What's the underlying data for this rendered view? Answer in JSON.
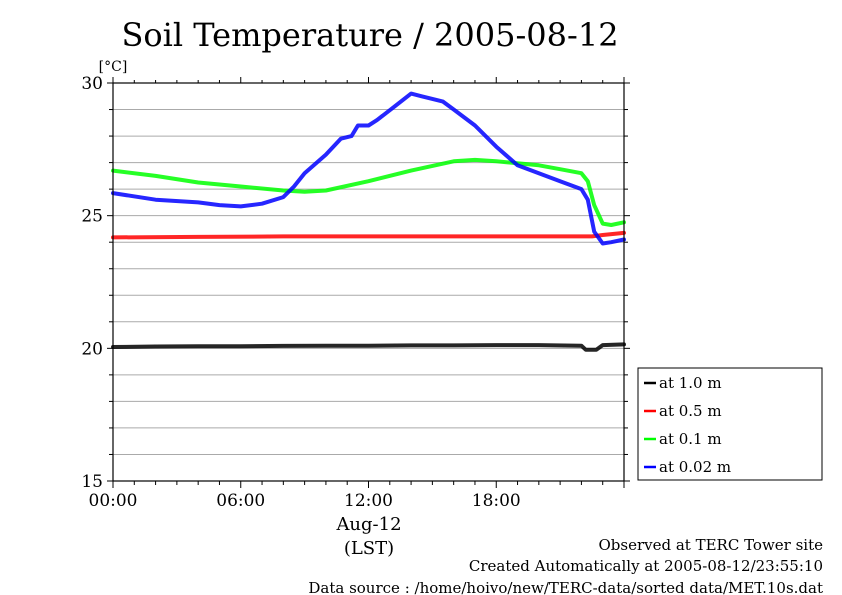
{
  "chart_data": {
    "type": "line",
    "title": "Soil Temperature / 2005-08-12",
    "ylabel": "[°C]",
    "xlabel_date": "Aug-12",
    "xlabel_tz": "(LST)",
    "ylim": [
      15,
      30
    ],
    "yticks": [
      "15",
      "20",
      "25",
      "30"
    ],
    "xlim": [
      0,
      24
    ],
    "xticks": [
      {
        "value": 0,
        "label": "00:00"
      },
      {
        "value": 6,
        "label": "06:00"
      },
      {
        "value": 12,
        "label": "12:00"
      },
      {
        "value": 18,
        "label": "18:00"
      }
    ],
    "grid": true,
    "legend_position": "bottom-right outside",
    "series": [
      {
        "name": "at 1.0 m",
        "color": "#000000",
        "x": [
          0,
          2,
          4,
          6,
          8,
          10,
          12,
          14,
          16,
          18,
          20,
          22.0,
          22.2,
          22.7,
          23.0,
          24
        ],
        "y": [
          20.05,
          20.07,
          20.08,
          20.08,
          20.09,
          20.1,
          20.1,
          20.11,
          20.11,
          20.12,
          20.12,
          20.1,
          19.95,
          19.95,
          20.12,
          20.15
        ]
      },
      {
        "name": "at 0.5 m",
        "color": "#ff0000",
        "x": [
          0,
          4,
          8,
          12,
          16,
          20,
          22.5,
          23,
          24
        ],
        "y": [
          24.18,
          24.2,
          24.22,
          24.22,
          24.22,
          24.22,
          24.22,
          24.27,
          24.35
        ]
      },
      {
        "name": "at 0.1 m",
        "color": "#00ff00",
        "x": [
          0,
          2,
          4,
          6,
          8,
          9,
          10,
          12,
          14,
          16,
          17,
          18,
          20,
          21,
          22,
          22.3,
          22.6,
          23.0,
          23.4,
          24
        ],
        "y": [
          26.7,
          26.5,
          26.25,
          26.1,
          25.95,
          25.9,
          25.95,
          26.3,
          26.7,
          27.05,
          27.1,
          27.05,
          26.9,
          26.75,
          26.6,
          26.3,
          25.4,
          24.7,
          24.65,
          24.75
        ]
      },
      {
        "name": "at 0.02 m",
        "color": "#0000ff",
        "x": [
          0,
          2,
          4,
          5,
          6,
          7,
          8,
          8.5,
          9,
          10,
          10.7,
          11.2,
          11.5,
          12,
          12.4,
          13.2,
          14.0,
          14.5,
          15.0,
          15.5,
          16,
          17,
          18,
          19,
          20,
          21,
          22,
          22.3,
          22.6,
          23.0,
          23.4,
          24
        ],
        "y": [
          25.85,
          25.6,
          25.5,
          25.4,
          25.35,
          25.45,
          25.7,
          26.1,
          26.6,
          27.3,
          27.9,
          28.0,
          28.4,
          28.4,
          28.6,
          29.1,
          29.6,
          29.5,
          29.4,
          29.3,
          29.0,
          28.4,
          27.6,
          26.9,
          26.6,
          26.3,
          26.0,
          25.6,
          24.4,
          23.95,
          24.0,
          24.1
        ]
      }
    ]
  },
  "footer": {
    "line1": "Observed at TERC Tower site",
    "line2": "Created Automatically at 2005-08-12/23:55:10",
    "line3": "Data source : /home/hoivo/new/TERC-data/sorted  data/MET.10s.dat"
  }
}
